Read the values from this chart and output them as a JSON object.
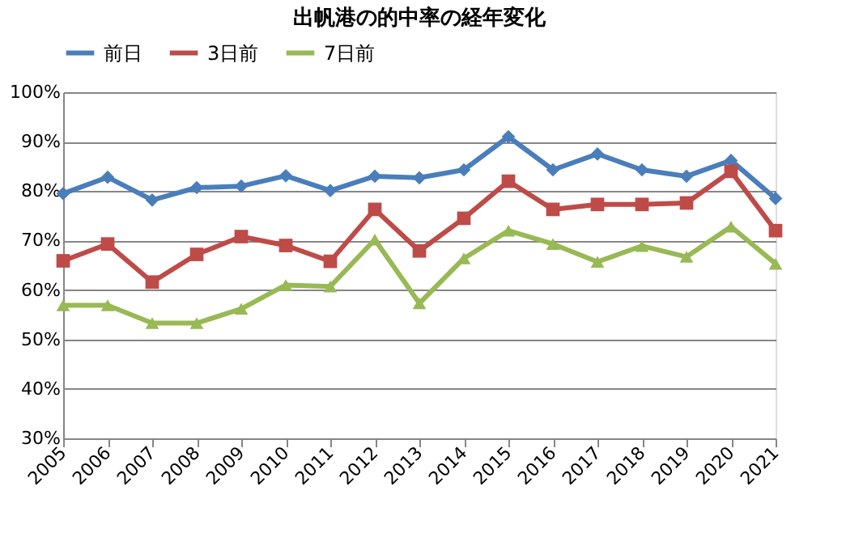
{
  "chart_data": {
    "type": "line",
    "title": "出帆港の的中率の経年変化",
    "categories": [
      "2005",
      "2006",
      "2007",
      "2008",
      "2009",
      "2010",
      "2011",
      "2012",
      "2013",
      "2014",
      "2015",
      "2016",
      "2017",
      "2018",
      "2019",
      "2020",
      "2021"
    ],
    "series": [
      {
        "name": "前日",
        "color": "#4a7ebb",
        "marker": "diamond",
        "values": [
          79.5,
          82.8,
          78.2,
          80.7,
          81,
          83.1,
          80.1,
          83,
          82.7,
          84.3,
          91,
          84.3,
          87.5,
          84.3,
          83,
          86.2,
          78.5
        ]
      },
      {
        "name": "3日前",
        "color": "#be4b48",
        "marker": "square",
        "values": [
          65.9,
          69.3,
          61.6,
          67.2,
          70.8,
          69,
          65.8,
          76.3,
          67.9,
          74.5,
          82,
          76.3,
          77.3,
          77.3,
          77.6,
          84,
          72
        ]
      },
      {
        "name": "7日前",
        "color": "#98b954",
        "marker": "triangle",
        "values": [
          56.9,
          56.9,
          53.3,
          53.3,
          56.2,
          61,
          60.7,
          70.2,
          57.3,
          66.4,
          72,
          69.3,
          65.7,
          68.9,
          66.7,
          72.8,
          65.3
        ]
      }
    ],
    "ylim": [
      30,
      100
    ],
    "yticks": [
      {
        "value": 30,
        "label": "30%"
      },
      {
        "value": 40,
        "label": "40%"
      },
      {
        "value": 50,
        "label": "50%"
      },
      {
        "value": 60,
        "label": "60%"
      },
      {
        "value": 70,
        "label": "70%"
      },
      {
        "value": 80,
        "label": "80%"
      },
      {
        "value": 90,
        "label": "90%"
      },
      {
        "value": 100,
        "label": "100%"
      }
    ],
    "grid": "y",
    "legend": "top",
    "line_style": "solid"
  }
}
